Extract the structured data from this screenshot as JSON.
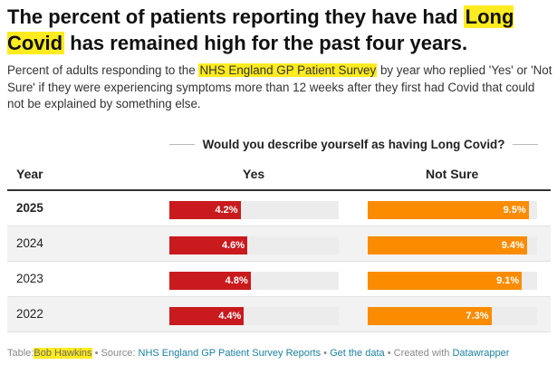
{
  "title": {
    "part1": "The percent of patients reporting they have had",
    "highlight": "Long Covid",
    "part2": "has remained high for the past four years."
  },
  "subtitle": {
    "part1": "Percent of adults responding to the",
    "highlight": "NHS England GP Patient Survey",
    "part2": "by year who replied 'Yes' or 'Not Sure' if they were experiencing symptoms more than 12 weeks after they first had Covid that could not be explained by something else."
  },
  "colors": {
    "yes": "#c91a1e",
    "not_sure": "#fb8c00",
    "highlight": "#ffeb1f"
  },
  "chart_data": {
    "type": "table",
    "question": "Would you describe yourself as having Long Covid?",
    "columns": {
      "year": "Year",
      "yes": "Yes",
      "not_sure": "Not Sure"
    },
    "unit": "%",
    "scale_max": 10,
    "rows": [
      {
        "year": "2025",
        "yes": 4.2,
        "not_sure": 9.5,
        "yes_label": "4.2%",
        "not_sure_label": "9.5%"
      },
      {
        "year": "2024",
        "yes": 4.6,
        "not_sure": 9.4,
        "yes_label": "4.6%",
        "not_sure_label": "9.4%"
      },
      {
        "year": "2023",
        "yes": 4.8,
        "not_sure": 9.1,
        "yes_label": "4.8%",
        "not_sure_label": "9.1%"
      },
      {
        "year": "2022",
        "yes": 4.4,
        "not_sure": 7.3,
        "yes_label": "4.4%",
        "not_sure_label": "7.3%"
      }
    ]
  },
  "footer": {
    "table_label": "Table:",
    "author": "Bob Hawkins",
    "source_label": "Source:",
    "source_link": "NHS England GP Patient Survey Reports",
    "get_data": "Get the data",
    "created_with": "Created with",
    "tool": "Datawrapper",
    "sep": "•"
  }
}
